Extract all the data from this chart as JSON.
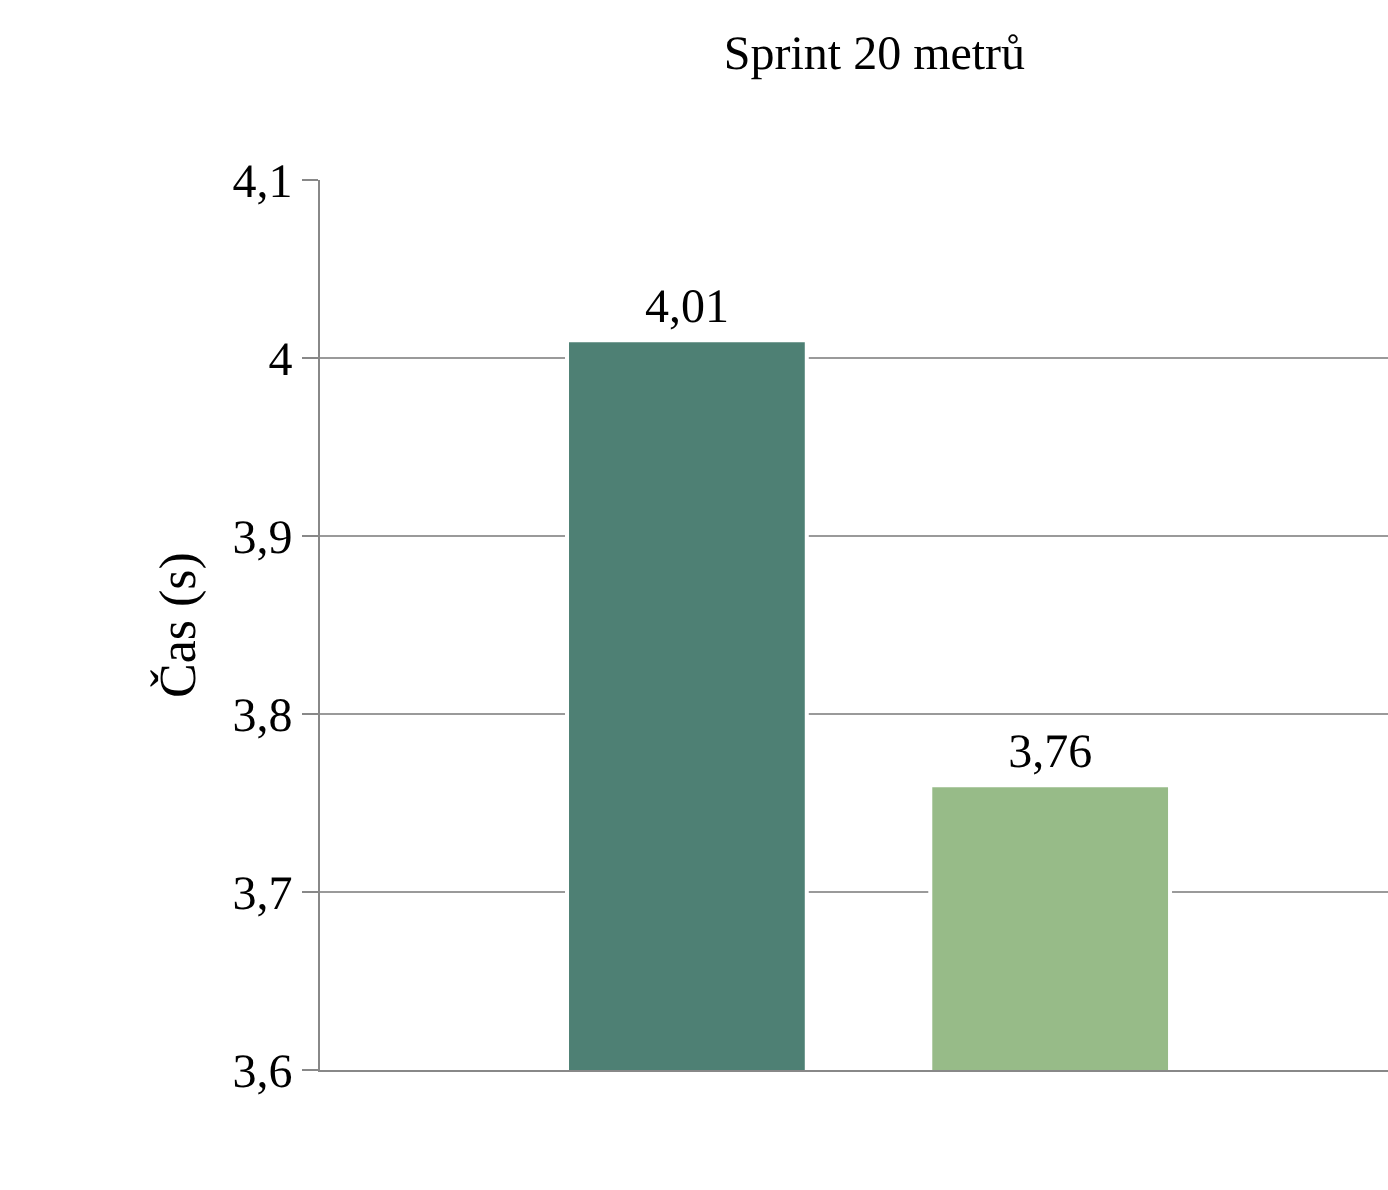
{
  "chart_data": {
    "type": "bar",
    "title": "Sprint 20 metrů",
    "ylabel": "Čas (s)",
    "categories": [
      null,
      null
    ],
    "values": [
      4.01,
      3.76
    ],
    "colors": [
      "#4e8074",
      "#97bb88"
    ],
    "value_labels": [
      "4,01",
      "3,76"
    ],
    "ylim": [
      3.6,
      4.1
    ],
    "yticks": [
      {
        "value": 3.6,
        "label": "3,6"
      },
      {
        "value": 3.7,
        "label": "3,7"
      },
      {
        "value": 3.8,
        "label": "3,8"
      },
      {
        "value": 3.9,
        "label": "3,9"
      },
      4,
      {
        "value": 4.1,
        "label": "4,1"
      }
    ],
    "grid": "y",
    "legend": false
  }
}
